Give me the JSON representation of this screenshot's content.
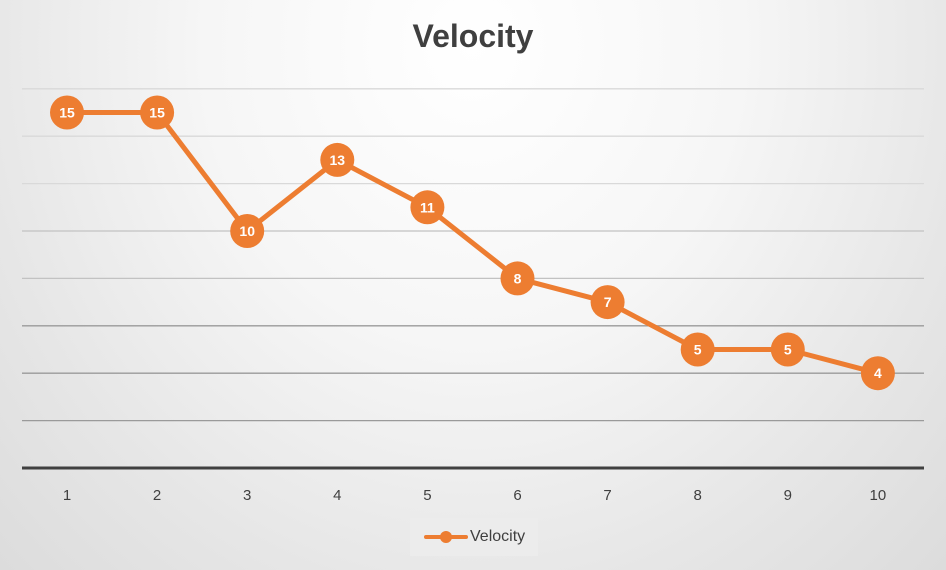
{
  "chart_data": {
    "type": "line",
    "title": "Velocity",
    "xlabel": "",
    "ylabel": "",
    "categories": [
      "1",
      "2",
      "3",
      "4",
      "5",
      "6",
      "7",
      "8",
      "9",
      "10"
    ],
    "series": [
      {
        "name": "Velocity",
        "values": [
          15,
          15,
          10,
          13,
          11,
          8,
          7,
          5,
          5,
          4
        ],
        "color": "#ed7d31"
      }
    ],
    "ylim": [
      0,
      16
    ],
    "grid": true,
    "data_labels": true,
    "legend_position": "bottom"
  }
}
